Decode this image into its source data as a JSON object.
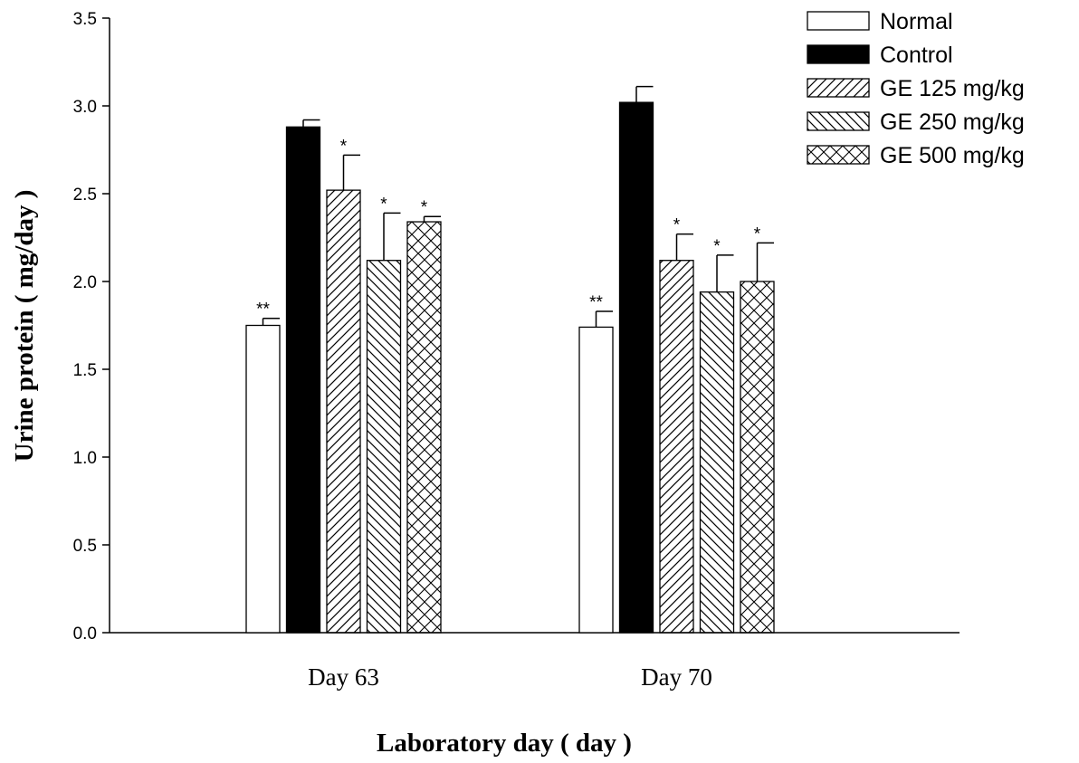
{
  "chart_data": {
    "type": "bar",
    "title": "",
    "xlabel": "Laboratory day ( day )",
    "ylabel": "Urine protein ( mg/day )",
    "ylim": [
      0,
      3.5
    ],
    "yticks": [
      "0.0",
      "0.5",
      "1.0",
      "1.5",
      "2.0",
      "2.5",
      "3.0",
      "3.5"
    ],
    "grid": false,
    "legend_position": "top-right",
    "categories": [
      "Day 63",
      "Day 70"
    ],
    "series": [
      {
        "name": "Normal",
        "pattern": "none",
        "fill": "#ffffff",
        "values": [
          1.75,
          1.74
        ],
        "errors": [
          0.04,
          0.09
        ],
        "significance": [
          "**",
          "**"
        ]
      },
      {
        "name": "Control",
        "pattern": "solid",
        "fill": "#000000",
        "values": [
          2.88,
          3.02
        ],
        "errors": [
          0.04,
          0.09
        ],
        "significance": [
          "",
          ""
        ]
      },
      {
        "name": "GE 125 mg/kg",
        "pattern": "diagonal-up",
        "fill": "#ffffff",
        "values": [
          2.52,
          2.12
        ],
        "errors": [
          0.2,
          0.15
        ],
        "significance": [
          "*",
          "*"
        ]
      },
      {
        "name": "GE 250 mg/kg",
        "pattern": "diagonal-down",
        "fill": "#ffffff",
        "values": [
          2.12,
          1.94
        ],
        "errors": [
          0.27,
          0.21
        ],
        "significance": [
          "*",
          "*"
        ]
      },
      {
        "name": "GE 500 mg/kg",
        "pattern": "crosshatch",
        "fill": "#ffffff",
        "values": [
          2.34,
          2.0
        ],
        "errors": [
          0.03,
          0.22
        ],
        "significance": [
          "*",
          "*"
        ]
      }
    ]
  }
}
